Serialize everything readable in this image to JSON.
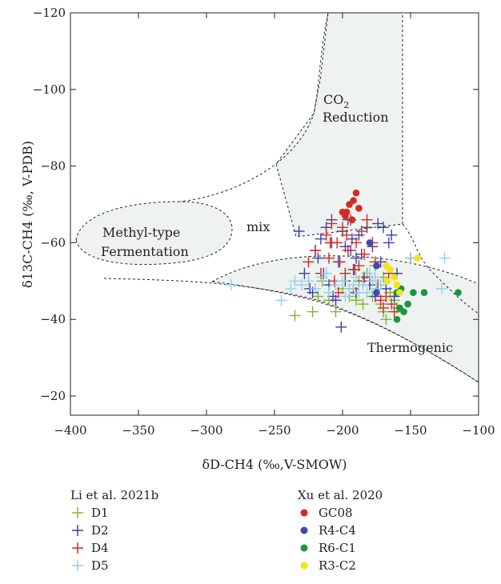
{
  "chart_data": {
    "type": "scatter",
    "title": "",
    "xlabel": "δD-CH4 (‰,V-SMOW)",
    "ylabel": "δ13C-CH4 (‰, V-PDB)",
    "xlim": [
      -400,
      -100
    ],
    "ylim": [
      -15,
      -120
    ],
    "xticks": [
      "−400",
      "−350",
      "−300",
      "−250",
      "−200",
      "−150",
      "−100"
    ],
    "yticks": [
      "−120",
      "−100",
      "−80",
      "−60",
      "−40",
      "−20"
    ],
    "regions": [
      {
        "name": "CO2 Reduction",
        "label_main": "CO",
        "label_sub": "2",
        "label_line2": "Reduction"
      },
      {
        "name": "Methyl-type Fermentation",
        "label_line1": "Methyl-type",
        "label_line2": "Fermentation"
      },
      {
        "name": "mix",
        "label_line1": "mix"
      },
      {
        "name": "Thermogenic",
        "label_line1": "Thermogenic"
      }
    ],
    "legend_groups": [
      {
        "title": "Li et al. 2021b",
        "marker": "cross",
        "series": [
          "D1",
          "D2",
          "D4",
          "D5"
        ]
      },
      {
        "title": "Xu et al. 2020",
        "marker": "dot",
        "series": [
          "GC08",
          "R4-C4",
          "R6-C1",
          "R3-C2"
        ]
      }
    ],
    "series": [
      {
        "name": "D1",
        "marker": "cross",
        "color": "#7ab82f",
        "points": [
          [
            -235,
            -41
          ],
          [
            -222,
            -42
          ],
          [
            -218,
            -46
          ],
          [
            -210,
            -45
          ],
          [
            -205,
            -42
          ],
          [
            -200,
            -48
          ],
          [
            -195,
            -46
          ],
          [
            -190,
            -45
          ],
          [
            -185,
            -44
          ],
          [
            -180,
            -50
          ],
          [
            -178,
            -46
          ],
          [
            -175,
            -48
          ],
          [
            -172,
            -44
          ],
          [
            -170,
            -42
          ],
          [
            -168,
            -40
          ],
          [
            -165,
            -47
          ],
          [
            -162,
            -45
          ],
          [
            -160,
            -43
          ],
          [
            -176,
            -54
          ],
          [
            -182,
            -52
          ],
          [
            -188,
            -50
          ],
          [
            -215,
            -50
          ],
          [
            -198,
            -52
          ],
          [
            -170,
            -51
          ]
        ]
      },
      {
        "name": "D2",
        "marker": "cross",
        "color": "#3d3fa8",
        "points": [
          [
            -232,
            -63
          ],
          [
            -228,
            -52
          ],
          [
            -222,
            -47
          ],
          [
            -218,
            -56
          ],
          [
            -216,
            -61
          ],
          [
            -212,
            -64
          ],
          [
            -210,
            -49
          ],
          [
            -208,
            -60
          ],
          [
            -205,
            -45
          ],
          [
            -203,
            -55
          ],
          [
            -201,
            -38
          ],
          [
            -200,
            -63
          ],
          [
            -198,
            -50
          ],
          [
            -196,
            -66
          ],
          [
            -194,
            -58
          ],
          [
            -192,
            -53
          ],
          [
            -190,
            -47
          ],
          [
            -188,
            -62
          ],
          [
            -186,
            -57
          ],
          [
            -184,
            -51
          ],
          [
            -182,
            -64
          ],
          [
            -180,
            -49
          ],
          [
            -178,
            -59
          ],
          [
            -176,
            -46
          ],
          [
            -174,
            -65
          ],
          [
            -172,
            -55
          ],
          [
            -170,
            -64
          ],
          [
            -168,
            -48
          ],
          [
            -166,
            -60
          ],
          [
            -164,
            -62
          ],
          [
            -162,
            -46
          ],
          [
            -160,
            -52
          ],
          [
            -207,
            -46
          ],
          [
            -214,
            -52
          ],
          [
            -220,
            -58
          ],
          [
            -224,
            -48
          ],
          [
            -198,
            -59
          ],
          [
            -190,
            -56
          ],
          [
            -208,
            -66
          ],
          [
            -193,
            -61
          ]
        ]
      },
      {
        "name": "D4",
        "marker": "cross",
        "color": "#d42a22",
        "points": [
          [
            -225,
            -55
          ],
          [
            -220,
            -58
          ],
          [
            -216,
            -52
          ],
          [
            -212,
            -62
          ],
          [
            -210,
            -56
          ],
          [
            -208,
            -65
          ],
          [
            -206,
            -50
          ],
          [
            -204,
            -60
          ],
          [
            -202,
            -55
          ],
          [
            -200,
            -64
          ],
          [
            -198,
            -52
          ],
          [
            -196,
            -58
          ],
          [
            -194,
            -66
          ],
          [
            -192,
            -48
          ],
          [
            -190,
            -60
          ],
          [
            -188,
            -54
          ],
          [
            -186,
            -63
          ],
          [
            -184,
            -57
          ],
          [
            -182,
            -66
          ],
          [
            -180,
            -51
          ],
          [
            -178,
            -60
          ],
          [
            -176,
            -55
          ],
          [
            -174,
            -49
          ],
          [
            -172,
            -45
          ],
          [
            -170,
            -43
          ],
          [
            -168,
            -46
          ],
          [
            -166,
            -52
          ],
          [
            -164,
            -44
          ],
          [
            -162,
            -42
          ],
          [
            -150,
            -56
          ],
          [
            -209,
            -60
          ],
          [
            -197,
            -62
          ],
          [
            -185,
            -50
          ],
          [
            -203,
            -47
          ],
          [
            -191,
            -53
          ]
        ]
      },
      {
        "name": "D5",
        "marker": "cross",
        "color": "#8fd0ea",
        "points": [
          [
            -282,
            -49
          ],
          [
            -245,
            -45
          ],
          [
            -238,
            -48
          ],
          [
            -235,
            -50
          ],
          [
            -230,
            -49
          ],
          [
            -225,
            -50
          ],
          [
            -220,
            -48
          ],
          [
            -215,
            -51
          ],
          [
            -210,
            -47
          ],
          [
            -205,
            -49
          ],
          [
            -200,
            -50
          ],
          [
            -195,
            -48
          ],
          [
            -190,
            -51
          ],
          [
            -185,
            -49
          ],
          [
            -182,
            -47
          ],
          [
            -180,
            -52
          ],
          [
            -178,
            -50
          ],
          [
            -175,
            -48
          ],
          [
            -172,
            -49
          ],
          [
            -150,
            -56
          ],
          [
            -125,
            -56
          ],
          [
            -127,
            -48
          ],
          [
            -212,
            -52
          ],
          [
            -198,
            -46
          ],
          [
            -188,
            -47
          ],
          [
            -176,
            -51
          ],
          [
            -192,
            -49
          ]
        ]
      },
      {
        "name": "GC08",
        "marker": "dot",
        "color": "#d42a22",
        "points": [
          [
            -200,
            -68
          ],
          [
            -197,
            -68
          ],
          [
            -195,
            -70
          ],
          [
            -192,
            -71
          ],
          [
            -190,
            -73
          ],
          [
            -188,
            -69
          ],
          [
            -193,
            -66
          ],
          [
            -198,
            -67
          ]
        ]
      },
      {
        "name": "R4-C4",
        "marker": "dot",
        "color": "#3d4ab0",
        "points": [
          [
            -175,
            -54
          ],
          [
            -175,
            -47
          ],
          [
            -180,
            -60
          ]
        ]
      },
      {
        "name": "R6-C1",
        "marker": "dot",
        "color": "#1a9641",
        "points": [
          [
            -160,
            -47
          ],
          [
            -158,
            -43
          ],
          [
            -155,
            -42
          ],
          [
            -152,
            -44
          ],
          [
            -160,
            -40
          ],
          [
            -148,
            -47
          ],
          [
            -140,
            -47
          ],
          [
            -115,
            -47
          ],
          [
            -157,
            -48
          ]
        ]
      },
      {
        "name": "R3-C2",
        "marker": "dot",
        "color": "#f5e21a",
        "points": [
          [
            -168,
            -54
          ],
          [
            -165,
            -53
          ],
          [
            -162,
            -51
          ],
          [
            -160,
            -49
          ],
          [
            -158,
            -47
          ],
          [
            -145,
            -56
          ],
          [
            -167,
            -50
          ]
        ]
      }
    ]
  }
}
